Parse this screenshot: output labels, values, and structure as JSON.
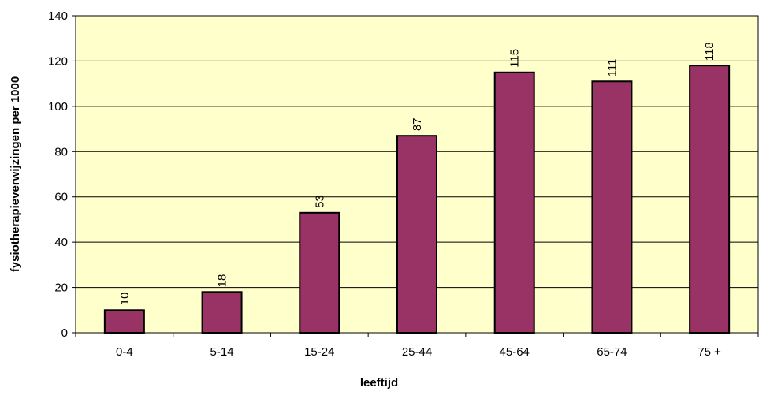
{
  "chart_data": {
    "type": "bar",
    "x_label": "leeftijd",
    "y_label": "fysiotherapieverwijzingen per 1000",
    "categories": [
      "0-4",
      "5-14",
      "15-24",
      "25-44",
      "45-64",
      "65-74",
      "75 +"
    ],
    "values": [
      10,
      18,
      53,
      87,
      115,
      111,
      118
    ],
    "color": "#993366",
    "ylim": [
      0,
      140
    ],
    "yticks": [
      0,
      20,
      40,
      60,
      80,
      100,
      120,
      140
    ],
    "grid": true
  }
}
